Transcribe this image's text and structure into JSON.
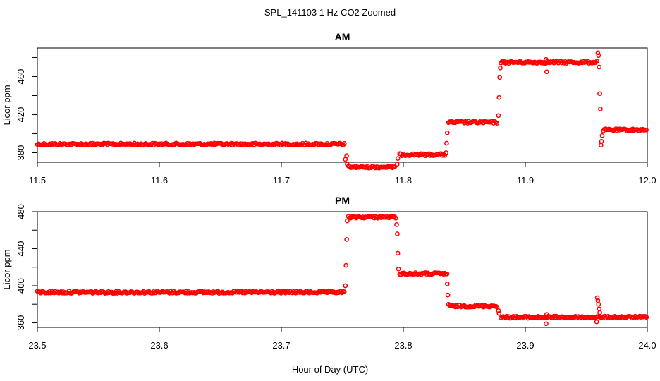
{
  "figure": {
    "title": "SPL_141103  1 Hz CO2 Zoomed",
    "xlabel": "Hour of Day (UTC)"
  },
  "chart_data": [
    {
      "type": "scatter",
      "title": "AM",
      "xlabel": "Hour of Day (UTC)",
      "ylabel": "Licor ppm",
      "xlim": [
        11.5,
        12.0
      ],
      "ylim": [
        370,
        490
      ],
      "xticks": [
        "11.5",
        "11.6",
        "11.7",
        "11.8",
        "11.9",
        "12.0"
      ],
      "yticks": [
        "380",
        "420",
        "460"
      ],
      "marker_color": "#ff0000",
      "grid": false,
      "segments": [
        {
          "x0": 11.5,
          "x1": 11.752,
          "y": 389
        },
        {
          "x0": 11.755,
          "x1": 11.793,
          "y": 365
        },
        {
          "x0": 11.797,
          "x1": 11.834,
          "y": 378
        },
        {
          "x0": 11.837,
          "x1": 11.877,
          "y": 412
        },
        {
          "x0": 11.88,
          "x1": 11.959,
          "y": 475
        },
        {
          "x0": 11.964,
          "x1": 12.0,
          "y": 404
        }
      ],
      "transitions": [
        {
          "x": 11.7525,
          "y": 373
        },
        {
          "x": 11.7535,
          "y": 377
        },
        {
          "x": 11.754,
          "y": 368
        },
        {
          "x": 11.795,
          "y": 368
        },
        {
          "x": 11.7955,
          "y": 374
        },
        {
          "x": 11.835,
          "y": 380
        },
        {
          "x": 11.8355,
          "y": 390
        },
        {
          "x": 11.836,
          "y": 401
        },
        {
          "x": 11.878,
          "y": 419
        },
        {
          "x": 11.8785,
          "y": 438
        },
        {
          "x": 11.879,
          "y": 459
        },
        {
          "x": 11.8795,
          "y": 469
        },
        {
          "x": 11.917,
          "y": 478
        },
        {
          "x": 11.9175,
          "y": 465
        },
        {
          "x": 11.9595,
          "y": 485
        },
        {
          "x": 11.96,
          "y": 482
        },
        {
          "x": 11.9605,
          "y": 470
        },
        {
          "x": 11.961,
          "y": 442
        },
        {
          "x": 11.9615,
          "y": 426
        },
        {
          "x": 11.962,
          "y": 388
        },
        {
          "x": 11.9625,
          "y": 392
        },
        {
          "x": 11.963,
          "y": 398
        }
      ]
    },
    {
      "type": "scatter",
      "title": "PM",
      "xlabel": "Hour of Day (UTC)",
      "ylabel": "Licor ppm",
      "xlim": [
        23.5,
        24.0
      ],
      "ylim": [
        355,
        480
      ],
      "xticks": [
        "23.5",
        "23.6",
        "23.7",
        "23.8",
        "23.9",
        "24.0"
      ],
      "yticks": [
        "360",
        "400",
        "440",
        "480"
      ],
      "marker_color": "#ff0000",
      "grid": false,
      "segments": [
        {
          "x0": 23.5,
          "x1": 23.752,
          "y": 393
        },
        {
          "x0": 23.755,
          "x1": 23.794,
          "y": 474
        },
        {
          "x0": 23.797,
          "x1": 23.836,
          "y": 413
        },
        {
          "x0": 23.838,
          "x1": 23.877,
          "y": 378
        },
        {
          "x0": 23.88,
          "x1": 24.0,
          "y": 366
        }
      ],
      "transitions": [
        {
          "x": 23.7525,
          "y": 400
        },
        {
          "x": 23.753,
          "y": 422
        },
        {
          "x": 23.7535,
          "y": 450
        },
        {
          "x": 23.754,
          "y": 470
        },
        {
          "x": 23.7945,
          "y": 466
        },
        {
          "x": 23.795,
          "y": 456
        },
        {
          "x": 23.7955,
          "y": 435
        },
        {
          "x": 23.796,
          "y": 418
        },
        {
          "x": 23.836,
          "y": 402
        },
        {
          "x": 23.8365,
          "y": 390
        },
        {
          "x": 23.837,
          "y": 380
        },
        {
          "x": 23.878,
          "y": 373
        },
        {
          "x": 23.8785,
          "y": 370
        },
        {
          "x": 23.917,
          "y": 359
        },
        {
          "x": 23.9175,
          "y": 369
        },
        {
          "x": 23.959,
          "y": 387
        },
        {
          "x": 23.9595,
          "y": 384
        },
        {
          "x": 23.96,
          "y": 380
        },
        {
          "x": 23.9605,
          "y": 375
        },
        {
          "x": 23.961,
          "y": 371
        },
        {
          "x": 23.9585,
          "y": 361
        }
      ]
    }
  ]
}
